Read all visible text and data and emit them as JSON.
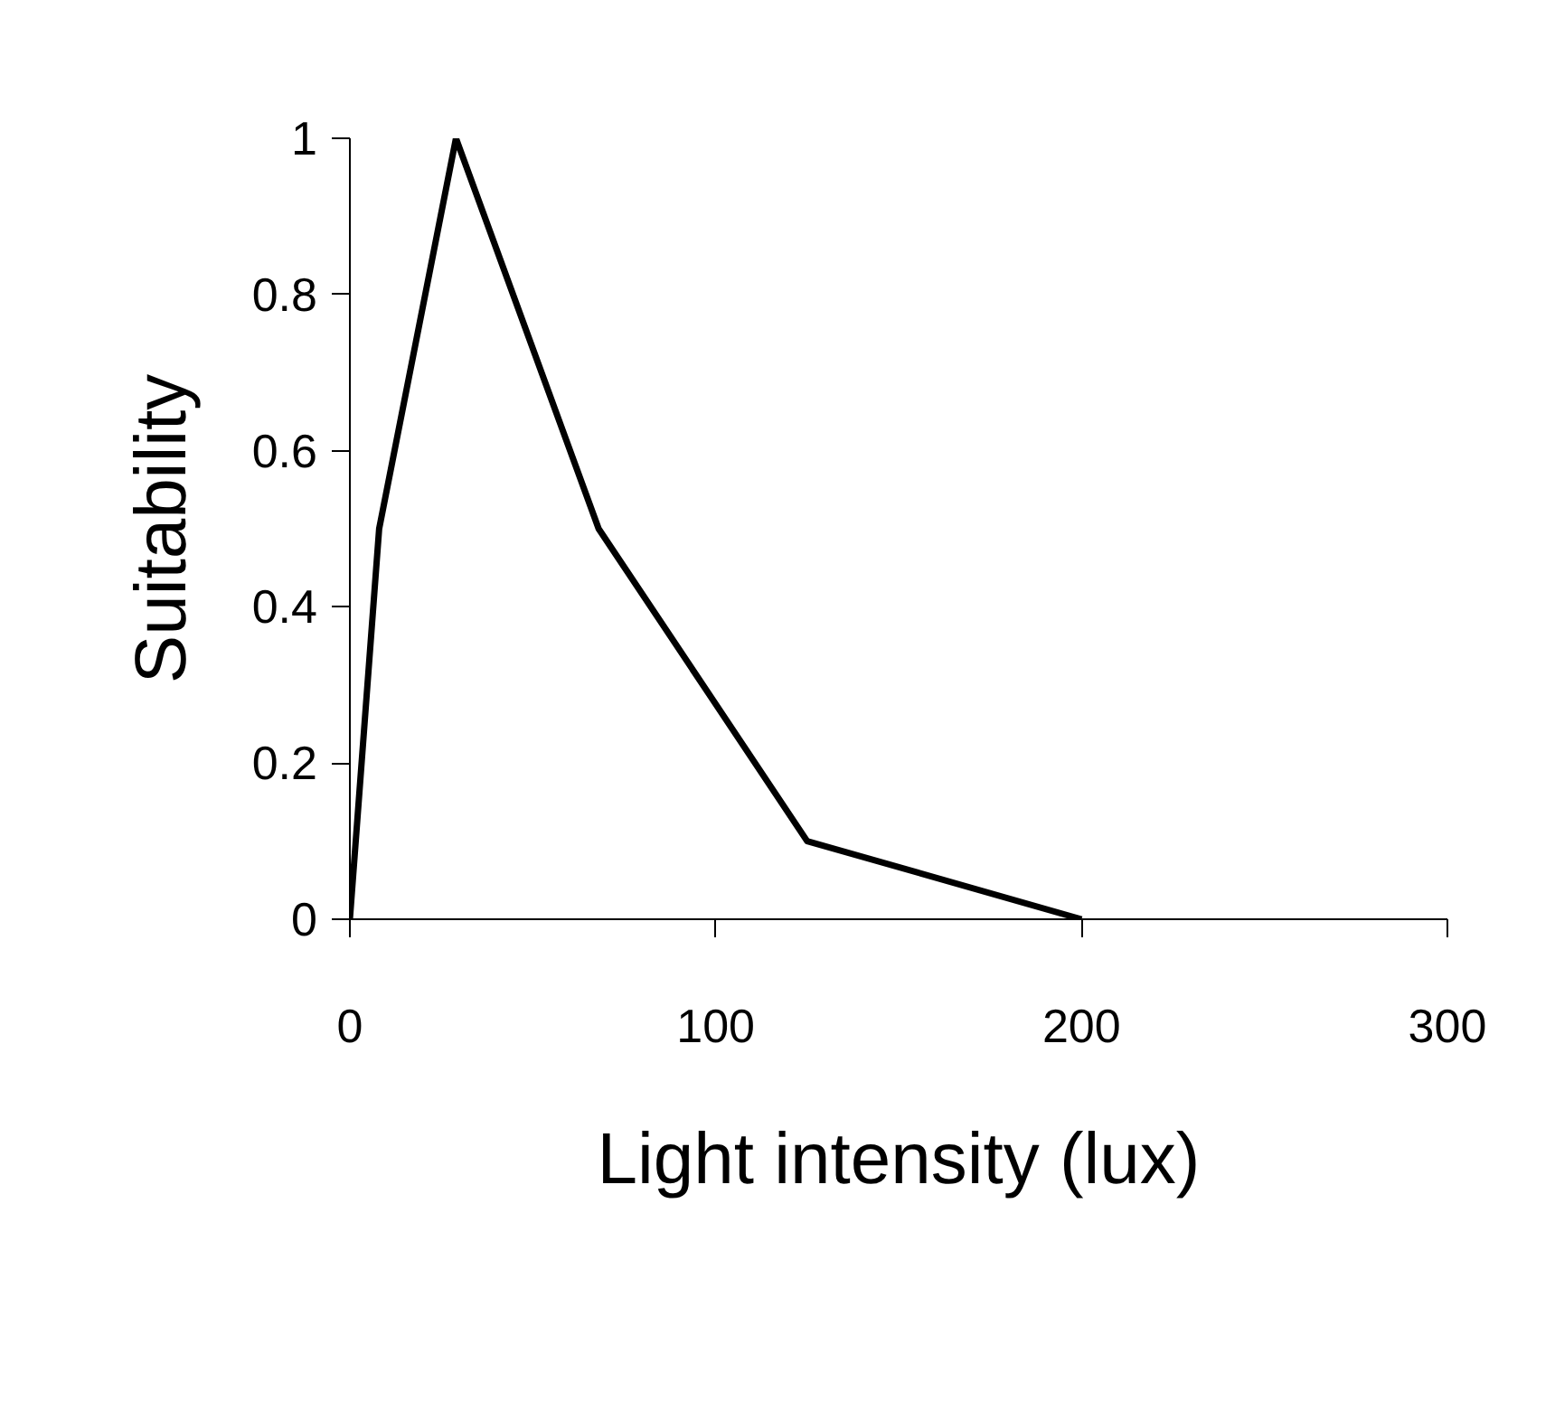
{
  "chart_data": {
    "type": "line",
    "xlabel": "Light intensity (lux)",
    "ylabel": "Suitability",
    "x": [
      0,
      8,
      29,
      68,
      125,
      200
    ],
    "series": [
      {
        "color": "#000000",
        "values": [
          0,
          0.5,
          1,
          0.5,
          0.1,
          0
        ]
      }
    ],
    "xlim": [
      0,
      300
    ],
    "xticks": [
      0,
      100,
      200,
      300
    ],
    "ylim": [
      0,
      1
    ],
    "yticks": [
      0,
      0.2,
      0.4,
      0.6,
      0.8,
      1
    ],
    "grid": false,
    "marker": "none",
    "line_style": "solid"
  }
}
